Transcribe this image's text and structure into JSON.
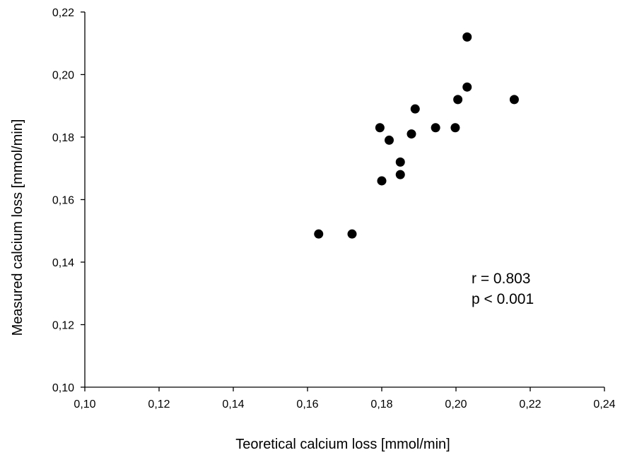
{
  "chart_data": {
    "type": "scatter",
    "title": "",
    "xlabel": "Teoretical calcium loss [mmol/min]",
    "ylabel": "Measured calcium loss [mmol/min]",
    "xlim": [
      0.1,
      0.24
    ],
    "ylim": [
      0.1,
      0.22
    ],
    "x_ticks": [
      0.1,
      0.12,
      0.14,
      0.16,
      0.18,
      0.2,
      0.22,
      0.24
    ],
    "y_ticks": [
      0.1,
      0.12,
      0.14,
      0.16,
      0.18,
      0.2,
      0.22
    ],
    "x_tick_labels": [
      "0,10",
      "0,12",
      "0,14",
      "0,16",
      "0,18",
      "0,20",
      "0,22",
      "0,24"
    ],
    "y_tick_labels": [
      "0,10",
      "0,12",
      "0,14",
      "0,16",
      "0,18",
      "0,20",
      "0,22"
    ],
    "grid": false,
    "legend": "none",
    "marker_color": "#000000",
    "points": [
      {
        "x": 0.163,
        "y": 0.149
      },
      {
        "x": 0.172,
        "y": 0.149
      },
      {
        "x": 0.18,
        "y": 0.166
      },
      {
        "x": 0.1795,
        "y": 0.183
      },
      {
        "x": 0.182,
        "y": 0.179
      },
      {
        "x": 0.185,
        "y": 0.172
      },
      {
        "x": 0.185,
        "y": 0.168
      },
      {
        "x": 0.188,
        "y": 0.181
      },
      {
        "x": 0.189,
        "y": 0.189
      },
      {
        "x": 0.1945,
        "y": 0.183
      },
      {
        "x": 0.1998,
        "y": 0.183
      },
      {
        "x": 0.2005,
        "y": 0.192
      },
      {
        "x": 0.203,
        "y": 0.196
      },
      {
        "x": 0.203,
        "y": 0.212
      },
      {
        "x": 0.2157,
        "y": 0.192
      }
    ],
    "annotations": [
      "r = 0.803",
      "p < 0.001"
    ]
  }
}
